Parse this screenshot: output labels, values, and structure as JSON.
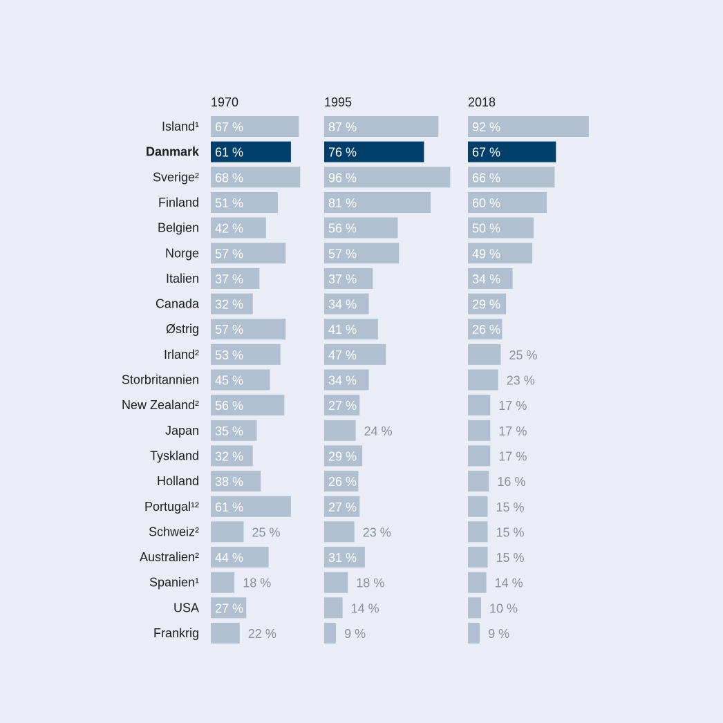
{
  "chart_data": {
    "type": "bar",
    "orientation": "horizontal",
    "unit": "%",
    "highlight": "Danmark",
    "colors": {
      "bar": "#b0c0d0",
      "highlight": "#003f6a",
      "label_inside": "#ffffff",
      "label_outside": "#8a8f99",
      "background": "#eaedf6"
    },
    "categories": [
      "Island¹",
      "Danmark",
      "Sverige²",
      "Finland",
      "Belgien",
      "Norge",
      "Italien",
      "Canada",
      "Østrig",
      "Irland²",
      "Storbritannien",
      "New Zealand²",
      "Japan",
      "Tyskland",
      "Holland",
      "Portugal¹²",
      "Schweiz²",
      "Australien²",
      "Spanien¹",
      "USA",
      "Frankrig"
    ],
    "series": [
      {
        "name": "1970",
        "values": [
          67,
          61,
          68,
          51,
          42,
          57,
          37,
          32,
          57,
          53,
          45,
          56,
          35,
          32,
          38,
          61,
          25,
          44,
          18,
          27,
          22
        ]
      },
      {
        "name": "1995",
        "values": [
          87,
          76,
          96,
          81,
          56,
          57,
          37,
          34,
          41,
          47,
          34,
          27,
          24,
          29,
          26,
          27,
          23,
          31,
          18,
          14,
          9
        ]
      },
      {
        "name": "2018",
        "values": [
          92,
          67,
          66,
          60,
          50,
          49,
          34,
          29,
          26,
          25,
          23,
          17,
          17,
          17,
          16,
          15,
          15,
          15,
          14,
          10,
          9
        ]
      }
    ]
  }
}
